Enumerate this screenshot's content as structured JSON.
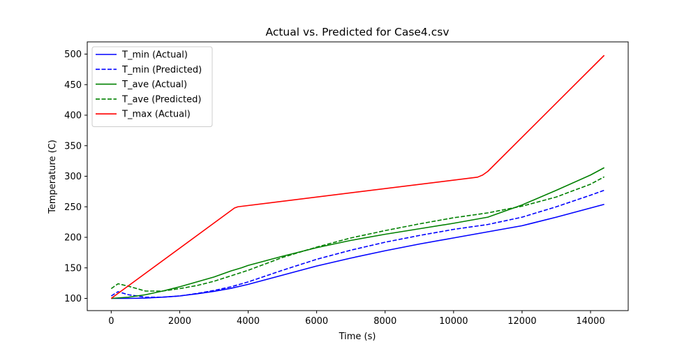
{
  "chart_data": {
    "type": "line",
    "title": "Actual vs. Predicted for Case4.csv",
    "xlabel": "Time (s)",
    "ylabel": "Temperature (C)",
    "xlim": [
      -700,
      15100
    ],
    "ylim": [
      80,
      520
    ],
    "xticks": [
      0,
      2000,
      4000,
      6000,
      8000,
      10000,
      12000,
      14000
    ],
    "yticks": [
      100,
      150,
      200,
      250,
      300,
      350,
      400,
      450,
      500
    ],
    "grid": false,
    "legend_position": "upper-left",
    "series": [
      {
        "name": "T_min (Actual)",
        "color": "#0000ff",
        "dash": "solid",
        "x": [
          0,
          500,
          1000,
          1500,
          2000,
          2500,
          3000,
          3500,
          4000,
          5000,
          6000,
          7000,
          8000,
          9000,
          10000,
          11000,
          12000,
          13000,
          14000,
          14400
        ],
        "y": [
          100,
          100,
          100.5,
          102,
          104,
          107.5,
          111.5,
          116.5,
          123,
          138,
          153,
          166,
          178,
          189,
          199,
          209,
          219,
          233,
          248,
          254
        ]
      },
      {
        "name": "T_min (Predicted)",
        "color": "#0000ff",
        "dash": "dashed",
        "x": [
          0,
          200,
          500,
          1000,
          1500,
          2000,
          2500,
          3000,
          3500,
          4000,
          5000,
          6000,
          7000,
          8000,
          9000,
          10000,
          11000,
          12000,
          13000,
          14000,
          14400
        ],
        "y": [
          104,
          111,
          106,
          102,
          102,
          104,
          108,
          113,
          119,
          127,
          146,
          164,
          179,
          192,
          203,
          213,
          221,
          233,
          250,
          269,
          277
        ]
      },
      {
        "name": "T_ave (Actual)",
        "color": "#008000",
        "dash": "solid",
        "x": [
          0,
          500,
          1000,
          1500,
          2000,
          2500,
          3000,
          3500,
          3800,
          4000,
          5000,
          6000,
          7000,
          8000,
          9000,
          10000,
          11000,
          12000,
          13000,
          14000,
          14400
        ],
        "y": [
          100,
          102,
          106,
          112,
          119,
          127,
          135,
          145,
          150,
          154,
          169,
          183,
          195,
          205,
          214,
          223,
          233,
          253,
          277,
          302,
          314
        ]
      },
      {
        "name": "T_ave (Predicted)",
        "color": "#008000",
        "dash": "dashed",
        "x": [
          0,
          200,
          500,
          1000,
          1500,
          2000,
          2500,
          3000,
          3500,
          4000,
          5000,
          6000,
          7000,
          8000,
          9000,
          10000,
          11000,
          12000,
          13000,
          14000,
          14400
        ],
        "y": [
          116,
          124,
          120,
          112,
          112,
          116,
          121,
          128,
          137,
          146,
          167,
          184,
          199,
          211,
          222,
          232,
          240,
          251,
          266,
          287,
          299
        ]
      },
      {
        "name": "T_max (Actual)",
        "color": "#ff0000",
        "dash": "solid",
        "x": [
          0,
          3600,
          3700,
          10700,
          10850,
          11000,
          14400
        ],
        "y": [
          100,
          248,
          250,
          298.5,
          302,
          308,
          498
        ]
      }
    ]
  }
}
